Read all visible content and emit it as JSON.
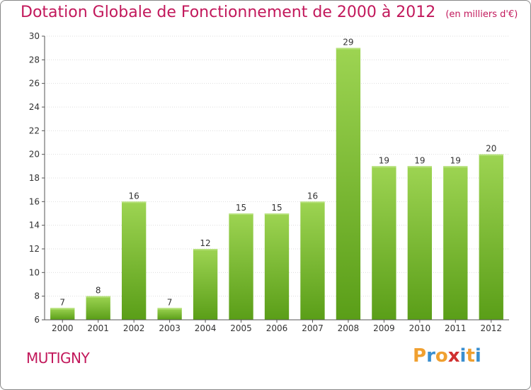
{
  "title": "Dotation Globale de Fonctionnement de 2000 à 2012",
  "subtitle": "(en milliers d'€)",
  "commune": "MUTIGNY",
  "logo": {
    "text": "Proxiti",
    "colors": [
      "#f0a030",
      "#3a8fd0",
      "#f0a030",
      "#d03030",
      "#3a8fd0",
      "#f0a030",
      "#3a8fd0"
    ]
  },
  "colors": {
    "title": "#c2185b",
    "bar_top": "#9dd452",
    "bar_bottom": "#5a9e18",
    "axis": "#555555",
    "grid": "#dddddd"
  },
  "chart_data": {
    "type": "bar",
    "categories": [
      "2000",
      "2001",
      "2002",
      "2003",
      "2004",
      "2005",
      "2006",
      "2007",
      "2008",
      "2009",
      "2010",
      "2011",
      "2012"
    ],
    "values": [
      7,
      8,
      16,
      7,
      12,
      15,
      15,
      16,
      29,
      19,
      19,
      19,
      20
    ],
    "ylim": [
      6,
      30
    ],
    "yticks": [
      6,
      8,
      10,
      12,
      14,
      16,
      18,
      20,
      22,
      24,
      26,
      28,
      30
    ],
    "grid": true
  }
}
